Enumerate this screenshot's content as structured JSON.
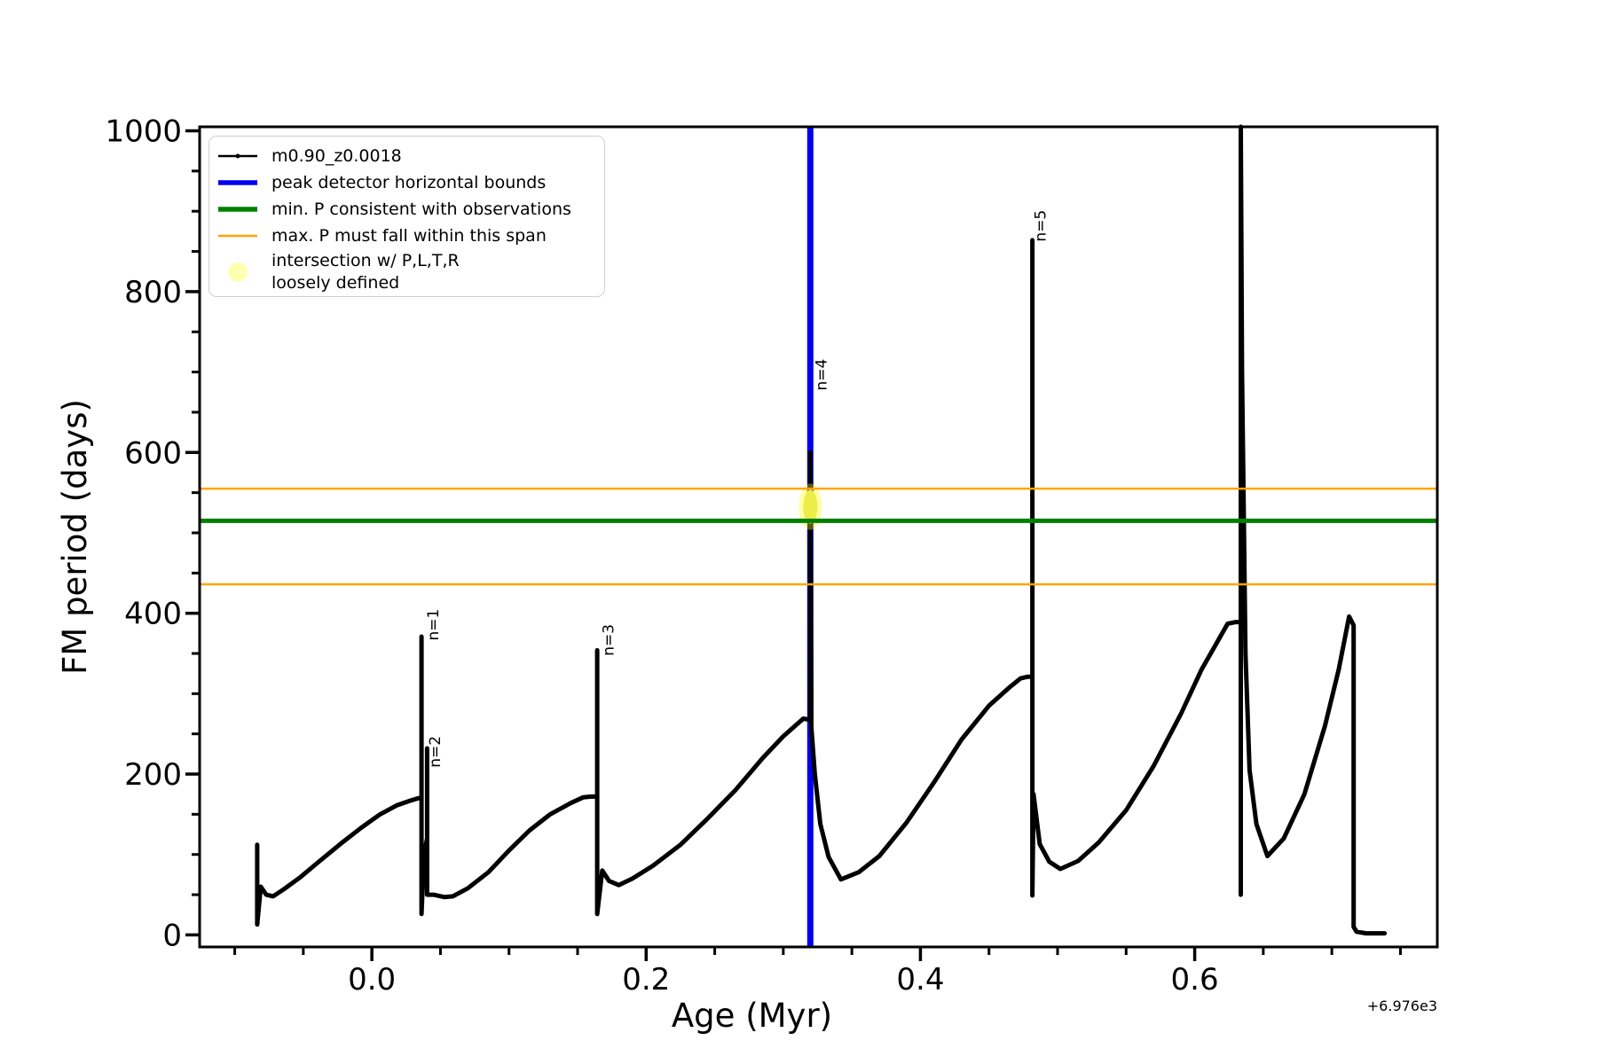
{
  "figure": {
    "background": "#ffffff",
    "text_color": "#000000"
  },
  "legend": {
    "entries": [
      {
        "label": "m0.90_z0.0018",
        "swatch": "line-marker",
        "color": "#000000"
      },
      {
        "label": "peak detector horizontal bounds",
        "swatch": "thick-line",
        "color": "#0000ee"
      },
      {
        "label": "min. P consistent with observations",
        "swatch": "thick-line",
        "color": "#008000"
      },
      {
        "label": "max. P must fall within this span",
        "swatch": "thin-line",
        "color": "#ffa500"
      },
      {
        "label": "intersection w/ P,L,T,R",
        "label2": "loosely defined",
        "swatch": "circle",
        "color": "rgba(255,255,0,0.3)"
      }
    ]
  },
  "chart_data": {
    "type": "line",
    "title": "",
    "xlabel": "Age (Myr)",
    "ylabel": "FM period (days)",
    "x_offset_label": "+6.976e3",
    "xlim": [
      -0.1256,
      0.7769
    ],
    "ylim": [
      -15,
      1005
    ],
    "grid": false,
    "legend_position": "upper left",
    "x_major_ticks": [
      {
        "v": 0.0,
        "label": "0.0"
      },
      {
        "v": 0.2,
        "label": "0.2"
      },
      {
        "v": 0.4,
        "label": "0.4"
      },
      {
        "v": 0.6,
        "label": "0.6"
      }
    ],
    "x_minor_ticks": [
      -0.1,
      -0.05,
      0.05,
      0.1,
      0.15,
      0.25,
      0.3,
      0.35,
      0.45,
      0.5,
      0.55,
      0.65,
      0.7,
      0.75
    ],
    "y_major_ticks": [
      {
        "v": 0,
        "label": "0"
      },
      {
        "v": 200,
        "label": "200"
      },
      {
        "v": 400,
        "label": "400"
      },
      {
        "v": 600,
        "label": "600"
      },
      {
        "v": 800,
        "label": "800"
      },
      {
        "v": 1000,
        "label": "1000"
      }
    ],
    "y_minor_ticks": [
      50,
      100,
      150,
      250,
      300,
      350,
      450,
      500,
      550,
      650,
      700,
      750,
      850,
      900,
      950
    ],
    "series": [
      {
        "name": "m0.90_z0.0018",
        "color": "#000000",
        "points": [
          [
            -0.0836,
            112
          ],
          [
            -0.0836,
            13
          ],
          [
            -0.081,
            60
          ],
          [
            -0.077,
            50
          ],
          [
            -0.072,
            48
          ],
          [
            -0.064,
            57
          ],
          [
            -0.052,
            72
          ],
          [
            -0.038,
            92
          ],
          [
            -0.023,
            113
          ],
          [
            -0.008,
            133
          ],
          [
            0.006,
            150
          ],
          [
            0.018,
            161
          ],
          [
            0.028,
            167
          ],
          [
            0.034,
            170
          ],
          [
            0.0362,
            170
          ],
          [
            0.0362,
            371
          ],
          [
            0.0362,
            26
          ],
          [
            0.038,
            100
          ],
          [
            0.0403,
            120
          ],
          [
            0.0403,
            232
          ],
          [
            0.0403,
            50
          ],
          [
            0.045,
            50
          ],
          [
            0.053,
            47
          ],
          [
            0.059,
            48
          ],
          [
            0.07,
            58
          ],
          [
            0.085,
            78
          ],
          [
            0.1,
            105
          ],
          [
            0.115,
            130
          ],
          [
            0.13,
            150
          ],
          [
            0.145,
            164
          ],
          [
            0.154,
            171
          ],
          [
            0.16,
            172
          ],
          [
            0.1643,
            172
          ],
          [
            0.1643,
            354
          ],
          [
            0.1643,
            26
          ],
          [
            0.168,
            80
          ],
          [
            0.173,
            67
          ],
          [
            0.18,
            62
          ],
          [
            0.19,
            70
          ],
          [
            0.205,
            86
          ],
          [
            0.225,
            112
          ],
          [
            0.245,
            145
          ],
          [
            0.265,
            180
          ],
          [
            0.285,
            220
          ],
          [
            0.3,
            247
          ],
          [
            0.31,
            262
          ],
          [
            0.3146,
            269
          ],
          [
            0.318,
            268
          ],
          [
            0.3197,
            268
          ],
          [
            0.3197,
            600
          ],
          [
            0.3205,
            258
          ],
          [
            0.323,
            200
          ],
          [
            0.327,
            138
          ],
          [
            0.333,
            97
          ],
          [
            0.342,
            69
          ],
          [
            0.355,
            78
          ],
          [
            0.37,
            98
          ],
          [
            0.39,
            140
          ],
          [
            0.41,
            190
          ],
          [
            0.43,
            243
          ],
          [
            0.45,
            285
          ],
          [
            0.465,
            308
          ],
          [
            0.473,
            319
          ],
          [
            0.478,
            321
          ],
          [
            0.4816,
            321
          ],
          [
            0.4816,
            864
          ],
          [
            0.4816,
            49
          ],
          [
            0.4825,
            175
          ],
          [
            0.487,
            113
          ],
          [
            0.494,
            91
          ],
          [
            0.502,
            82
          ],
          [
            0.515,
            92
          ],
          [
            0.53,
            115
          ],
          [
            0.55,
            155
          ],
          [
            0.57,
            210
          ],
          [
            0.59,
            275
          ],
          [
            0.605,
            330
          ],
          [
            0.615,
            360
          ],
          [
            0.624,
            387
          ],
          [
            0.63,
            389
          ],
          [
            0.6336,
            389
          ],
          [
            0.6336,
            50
          ],
          [
            0.6336,
            1005
          ],
          [
            0.6345,
            700
          ],
          [
            0.637,
            350
          ],
          [
            0.64,
            205
          ],
          [
            0.645,
            138
          ],
          [
            0.653,
            98
          ],
          [
            0.665,
            120
          ],
          [
            0.68,
            175
          ],
          [
            0.695,
            260
          ],
          [
            0.705,
            330
          ],
          [
            0.7126,
            396
          ],
          [
            0.7159,
            385
          ],
          [
            0.7159,
            10
          ],
          [
            0.718,
            4
          ],
          [
            0.725,
            2
          ],
          [
            0.7385,
            2
          ]
        ]
      }
    ],
    "vline": {
      "x": 0.3197,
      "color": "#0000ee",
      "width": 7,
      "name": "peak detector horizontal bounds"
    },
    "hlines": [
      {
        "y": 515,
        "color": "#008000",
        "width": 5,
        "name": "min. P consistent with observations"
      },
      {
        "y": 555,
        "color": "#ffa500",
        "width": 2.5,
        "name": "max. P span upper"
      },
      {
        "y": 436,
        "color": "#ffa500",
        "width": 2.5,
        "name": "max. P span lower"
      }
    ],
    "intersection_marker": {
      "x": 0.3197,
      "y_min": 507,
      "y_max": 558,
      "core_color": "#eded4a",
      "halo_color": "rgba(255,255,0,0.35)"
    },
    "annotations": [
      {
        "text": "n=1",
        "x": 0.0382,
        "y": 366
      },
      {
        "text": "n=2",
        "x": 0.0395,
        "y": 208
      },
      {
        "text": "n=3",
        "x": 0.1657,
        "y": 347
      },
      {
        "text": "n=4",
        "x": 0.321,
        "y": 677
      },
      {
        "text": "n=5",
        "x": 0.4809,
        "y": 862
      }
    ]
  }
}
